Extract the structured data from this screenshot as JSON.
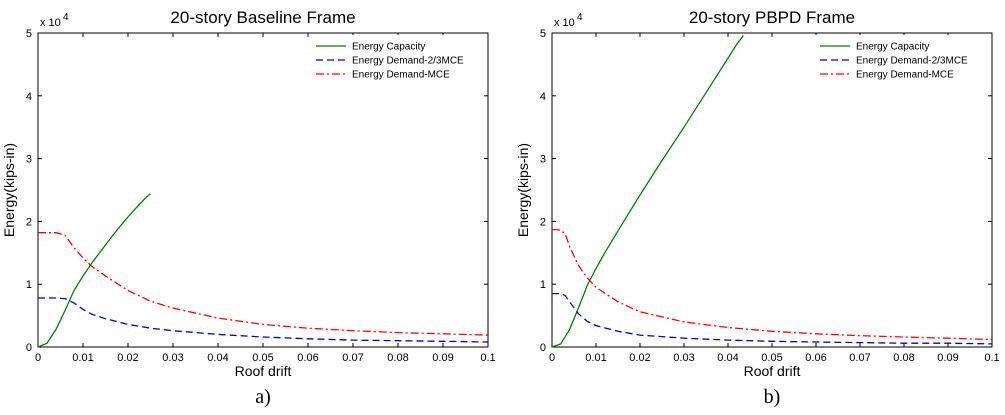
{
  "chart_data": [
    {
      "type": "line",
      "panel_label": "a)",
      "title": "20-story Baseline Frame",
      "xlabel": "Roof drift",
      "ylabel": "Energy(kips-in)",
      "y_multiplier": "x 10",
      "y_multiplier_exponent": "4",
      "xlim": [
        0,
        0.1
      ],
      "ylim": [
        0,
        5
      ],
      "x_ticks": [
        "0",
        "0.01",
        "0.02",
        "0.03",
        "0.04",
        "0.05",
        "0.06",
        "0.07",
        "0.08",
        "0.09",
        "0.1"
      ],
      "y_ticks": [
        "0",
        "1",
        "2",
        "3",
        "4",
        "5"
      ],
      "grid": false,
      "legend_position": "top-right",
      "series": [
        {
          "name": "Energy Capacity",
          "color": "#008000",
          "dash": "solid",
          "x": [
            0,
            0.002,
            0.004,
            0.006,
            0.008,
            0.01,
            0.012,
            0.014,
            0.016,
            0.018,
            0.02,
            0.022,
            0.024,
            0.025
          ],
          "y": [
            0,
            0.06,
            0.28,
            0.58,
            0.9,
            1.13,
            1.34,
            1.53,
            1.72,
            1.9,
            2.07,
            2.23,
            2.38,
            2.44
          ]
        },
        {
          "name": "Energy Demand-2/3MCE",
          "color": "#0000cc",
          "dash": "dash",
          "x": [
            0,
            0.002,
            0.004,
            0.006,
            0.008,
            0.01,
            0.012,
            0.015,
            0.02,
            0.025,
            0.03,
            0.04,
            0.05,
            0.06,
            0.07,
            0.08,
            0.09,
            0.1
          ],
          "y": [
            0.78,
            0.78,
            0.78,
            0.77,
            0.7,
            0.6,
            0.52,
            0.45,
            0.36,
            0.3,
            0.26,
            0.2,
            0.16,
            0.13,
            0.11,
            0.1,
            0.09,
            0.08
          ]
        },
        {
          "name": "Energy Demand-MCE",
          "color": "#ff0000",
          "dash": "dashdot",
          "x": [
            0,
            0.002,
            0.004,
            0.006,
            0.008,
            0.01,
            0.012,
            0.015,
            0.02,
            0.025,
            0.03,
            0.04,
            0.05,
            0.06,
            0.07,
            0.08,
            0.09,
            0.1
          ],
          "y": [
            1.82,
            1.82,
            1.82,
            1.78,
            1.58,
            1.42,
            1.28,
            1.13,
            0.9,
            0.73,
            0.62,
            0.46,
            0.36,
            0.3,
            0.26,
            0.23,
            0.21,
            0.19
          ]
        }
      ]
    },
    {
      "type": "line",
      "panel_label": "b)",
      "title": "20-story PBPD Frame",
      "xlabel": "Roof drift",
      "ylabel": "Energy(kips-in)",
      "y_multiplier": "x 10",
      "y_multiplier_exponent": "4",
      "xlim": [
        0,
        0.1
      ],
      "ylim": [
        0,
        5
      ],
      "x_ticks": [
        "0",
        "0.01",
        "0.02",
        "0.03",
        "0.04",
        "0.05",
        "0.06",
        "0.07",
        "0.08",
        "0.09",
        "0.1"
      ],
      "y_ticks": [
        "0",
        "1",
        "2",
        "3",
        "4",
        "5"
      ],
      "grid": false,
      "legend_position": "top-right",
      "series": [
        {
          "name": "Energy Capacity",
          "color": "#008000",
          "dash": "solid",
          "x": [
            0,
            0.002,
            0.004,
            0.006,
            0.008,
            0.01,
            0.012,
            0.015,
            0.02,
            0.025,
            0.03,
            0.035,
            0.04,
            0.042,
            0.0435
          ],
          "y": [
            0,
            0.05,
            0.28,
            0.62,
            0.98,
            1.25,
            1.5,
            1.85,
            2.42,
            2.97,
            3.5,
            4.05,
            4.6,
            4.82,
            4.96
          ]
        },
        {
          "name": "Energy Demand-2/3MCE",
          "color": "#0000cc",
          "dash": "dash",
          "x": [
            0,
            0.001,
            0.002,
            0.003,
            0.004,
            0.006,
            0.008,
            0.01,
            0.015,
            0.02,
            0.03,
            0.04,
            0.05,
            0.06,
            0.07,
            0.08,
            0.09,
            0.1
          ],
          "y": [
            0.85,
            0.85,
            0.85,
            0.82,
            0.72,
            0.53,
            0.41,
            0.34,
            0.25,
            0.19,
            0.14,
            0.11,
            0.09,
            0.08,
            0.07,
            0.06,
            0.06,
            0.05
          ]
        },
        {
          "name": "Energy Demand-MCE",
          "color": "#ff0000",
          "dash": "dashdot",
          "x": [
            0,
            0.001,
            0.002,
            0.003,
            0.004,
            0.006,
            0.008,
            0.01,
            0.015,
            0.02,
            0.03,
            0.04,
            0.05,
            0.06,
            0.07,
            0.08,
            0.09,
            0.1
          ],
          "y": [
            1.87,
            1.87,
            1.86,
            1.8,
            1.6,
            1.3,
            1.1,
            0.95,
            0.72,
            0.56,
            0.4,
            0.31,
            0.25,
            0.21,
            0.18,
            0.16,
            0.14,
            0.12
          ]
        }
      ]
    }
  ]
}
